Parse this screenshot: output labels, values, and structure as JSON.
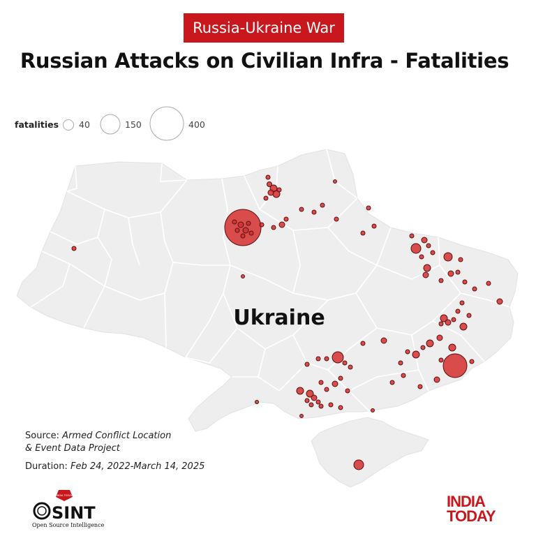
{
  "header": {
    "tag": "Russia-Ukraine War",
    "title": "Russian Attacks on Civilian Infra - Fatalities"
  },
  "legend": {
    "label": "fatalities",
    "items": [
      {
        "value": 40,
        "label": "40"
      },
      {
        "value": 150,
        "label": "150"
      },
      {
        "value": 400,
        "label": "400"
      }
    ]
  },
  "map": {
    "country_label": "Ukraine",
    "land_color": "#eeeeee",
    "border_color": "#ffffff",
    "marker_color": "#d32f2f",
    "marker_stroke": "#5a0f0f"
  },
  "source": {
    "prefix": "Source: ",
    "text_line1": "Armed Conflict Location",
    "text_line2": "& Event Data Project"
  },
  "duration": {
    "prefix": "Duration: ",
    "text": "Feb 24, 2022-March 14, 2025"
  },
  "logos": {
    "osint_main": "SINT",
    "osint_sub": "Open Source Intelligence",
    "osint_badge": "INDIA TODAY",
    "india_today_line1": "INDIA",
    "india_today_line2": "TODAY"
  }
}
